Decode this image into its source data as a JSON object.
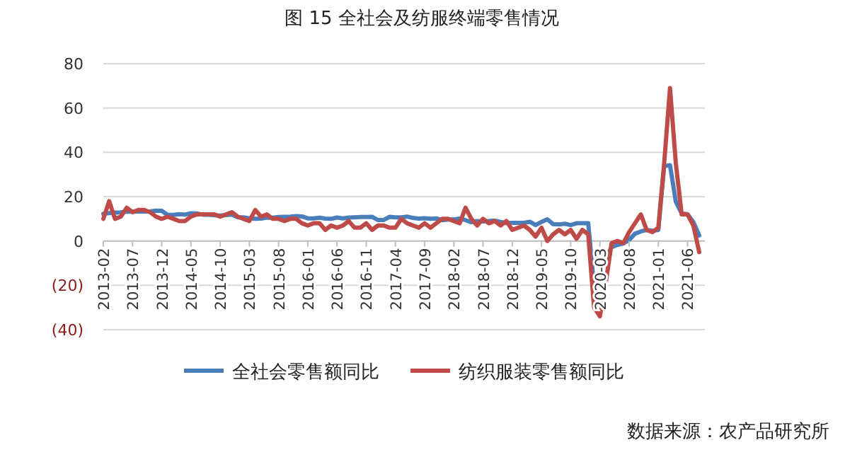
{
  "chart_data": {
    "type": "line",
    "title": "图 15   全社会及纺服终端零售情况",
    "categories": [
      "2013-02",
      null,
      null,
      null,
      null,
      "2013-07",
      null,
      null,
      null,
      null,
      "2013-12",
      null,
      null,
      null,
      null,
      "2014-05",
      null,
      null,
      null,
      null,
      "2014-10",
      null,
      null,
      null,
      null,
      "2015-03",
      null,
      null,
      null,
      null,
      "2015-08",
      null,
      null,
      null,
      null,
      "2016-01",
      null,
      null,
      null,
      null,
      "2016-06",
      null,
      null,
      null,
      null,
      "2016-11",
      null,
      null,
      null,
      null,
      "2017-04",
      null,
      null,
      null,
      null,
      "2017-09",
      null,
      null,
      null,
      null,
      "2018-02",
      null,
      null,
      null,
      null,
      "2018-07",
      null,
      null,
      null,
      null,
      "2018-12",
      null,
      null,
      null,
      null,
      "2019-05",
      null,
      null,
      null,
      null,
      "2019-10",
      null,
      null,
      null,
      null,
      "2020-03",
      null,
      null,
      null,
      null,
      "2020-08",
      null,
      null,
      null,
      null,
      "2021-01",
      null,
      null,
      null,
      null,
      "2021-06",
      null,
      null
    ],
    "series": [
      {
        "name": "全社会零售额同比",
        "color": "#4a7ebb",
        "values": [
          12.3,
          12.6,
          12.8,
          12.9,
          13.3,
          13.2,
          13.4,
          13.3,
          13.3,
          13.7,
          13.6,
          11.8,
          11.8,
          12.1,
          11.9,
          12.5,
          12.4,
          11.9,
          11.9,
          11.6,
          11.5,
          11.7,
          11.9,
          10.7,
          10.7,
          10.2,
          10.0,
          10.1,
          10.6,
          10.5,
          10.8,
          10.9,
          11.0,
          11.2,
          11.1,
          10.2,
          10.2,
          10.5,
          10.1,
          10.0,
          10.6,
          10.2,
          10.6,
          10.7,
          10.8,
          10.8,
          10.9,
          9.5,
          9.5,
          10.9,
          10.7,
          10.7,
          11.0,
          10.4,
          10.1,
          10.3,
          10.0,
          10.2,
          9.4,
          9.7,
          9.7,
          10.1,
          9.4,
          8.5,
          9.0,
          8.8,
          9.0,
          9.2,
          8.6,
          8.1,
          8.2,
          8.2,
          8.2,
          8.7,
          7.2,
          8.6,
          9.8,
          7.6,
          7.5,
          7.8,
          7.2,
          8.0,
          8.0,
          8.0,
          -20.5,
          -15.8,
          -7.5,
          -2.8,
          -1.8,
          -1.1,
          0.5,
          3.3,
          4.3,
          5.0,
          4.6,
          5.0,
          33.8,
          34.2,
          17.7,
          12.4,
          12.1,
          8.5,
          2.5
        ]
      },
      {
        "name": "纺织服装零售额同比",
        "color": "#be4b48",
        "values": [
          10,
          18,
          10,
          11,
          15,
          13,
          14,
          14,
          13,
          11,
          10,
          11,
          10,
          9,
          9,
          11,
          12,
          12,
          12,
          12,
          11,
          12,
          13,
          11,
          10,
          9,
          14,
          11,
          12,
          10,
          10,
          9,
          10,
          10,
          8,
          7,
          8,
          8,
          5,
          7,
          6,
          7,
          9,
          6,
          6,
          8,
          5,
          7,
          7,
          6,
          6,
          10,
          8,
          7,
          6,
          8,
          6,
          8,
          10,
          10,
          9,
          8,
          15,
          10,
          7,
          10,
          8,
          9,
          7,
          9,
          5,
          6,
          7,
          5,
          2,
          6,
          0,
          3,
          5,
          3,
          5,
          1,
          5,
          3,
          -30,
          -34,
          -19,
          -1,
          0,
          -1,
          4,
          8,
          12,
          5,
          4,
          6,
          35,
          69,
          35,
          12,
          12,
          7,
          -5
        ]
      }
    ],
    "ylim": [
      -40,
      80
    ],
    "yticks": [
      {
        "value": -40,
        "label": "(40)"
      },
      {
        "value": -20,
        "label": "(20)"
      },
      0,
      20,
      40,
      60,
      80
    ],
    "grid": "y",
    "legend": "bottom",
    "annotations": [
      "数据来源：农产品研究所"
    ]
  }
}
